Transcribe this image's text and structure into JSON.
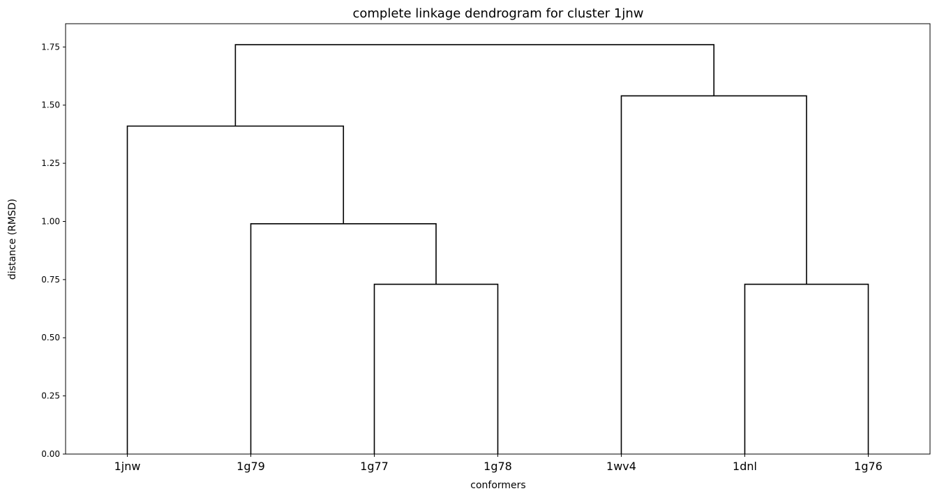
{
  "chart_data": {
    "type": "dendrogram",
    "title": "complete linkage dendrogram for cluster 1jnw",
    "xlabel": "conformers",
    "ylabel": "distance (RMSD)",
    "ylim": [
      0,
      1.85
    ],
    "yticks": [
      "0.00",
      "0.25",
      "0.50",
      "0.75",
      "1.00",
      "1.25",
      "1.50",
      "1.75"
    ],
    "leaves": [
      "1jnw",
      "1g79",
      "1g77",
      "1g78",
      "1wv4",
      "1dnl",
      "1g76"
    ],
    "line_color": "#000000",
    "grid": false,
    "merges": [
      {
        "left": "1g77",
        "right": "1g78",
        "height": 0.73
      },
      {
        "left": "1dnl",
        "right": "1g76",
        "height": 0.73
      },
      {
        "left": "1g79",
        "right": "(1g77, 1g78)",
        "height": 0.99
      },
      {
        "left": "1jnw",
        "right": "(1g79, 1g77, 1g78)",
        "height": 1.41
      },
      {
        "left": "1wv4",
        "right": "(1dnl, 1g76)",
        "height": 1.54
      },
      {
        "left": "(1jnw, 1g79, 1g77, 1g78)",
        "right": "(1wv4, 1dnl, 1g76)",
        "height": 1.76
      }
    ]
  }
}
